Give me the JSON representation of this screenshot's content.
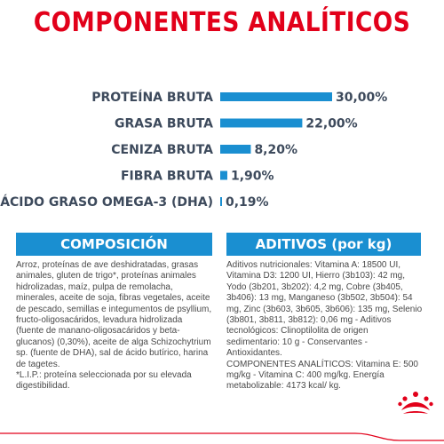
{
  "title": "COMPONENTES ANALÍTICOS",
  "chart_data": {
    "type": "bar",
    "orientation": "horizontal",
    "categories": [
      "PROTEÍNA BRUTA",
      "GRASA BRUTA",
      "CENIZA BRUTA",
      "FIBRA BRUTA",
      "ÁCIDO GRASO OMEGA-3 (DHA)"
    ],
    "values": [
      30.0,
      22.0,
      8.2,
      1.9,
      0.19
    ],
    "value_labels": [
      "30,00%",
      "22,00%",
      "8,20%",
      "1,90%",
      "0,19%"
    ],
    "bar_color": "#1a8fd1",
    "text_color": "#3d4a5c",
    "title": "COMPONENTES ANALÍTICOS",
    "xlabel": "",
    "ylabel": ""
  },
  "composicion": {
    "heading": "COMPOSICIÓN",
    "text": "Arroz, proteínas de ave deshidratadas, grasas animales, gluten de trigo*, proteínas animales hidrolizadas, maíz, pulpa de remolacha, minerales, aceite de soja, fibras vegetales, aceite de pescado, semillas e integumentos de psyllium, fructo-oligosacáridos, levadura hidrolizada (fuente de manano-oligosacáridos y beta-glucanos) (0,30%), aceite de alga Schizochytrium sp. (fuente de DHA), sal de ácido butírico, harina de tagetes.\n*L.I.P.: proteína seleccionada por su elevada digestibilidad."
  },
  "aditivos": {
    "heading": "ADITIVOS (por kg)",
    "text": "Aditivos nutricionales: Vitamina A: 18500 UI, Vitamina D3: 1200 UI, Hierro (3b103): 42 mg, Yodo (3b201, 3b202): 4,2 mg, Cobre (3b405, 3b406): 13 mg, Manganeso (3b502, 3b504): 54 mg, Zinc (3b603, 3b605, 3b606): 135 mg, Selenio (3b801, 3b811, 3b812): 0,06 mg - Aditivos tecnológicos: Clinoptilolita de origen sedimentario: 10 g - Conservantes - Antioxidantes.\nCOMPONENTES ANALÍTICOS: Vitamina E: 500 mg/kg - Vitamina C: 400 mg/kg. Energía metabolizable: 4173 kcal/ kg."
  },
  "logo": {
    "icon": "royal-crown-icon",
    "color": "#e2001a"
  },
  "colors": {
    "brand_red": "#e2001a",
    "accent_blue": "#1a8fd1"
  }
}
